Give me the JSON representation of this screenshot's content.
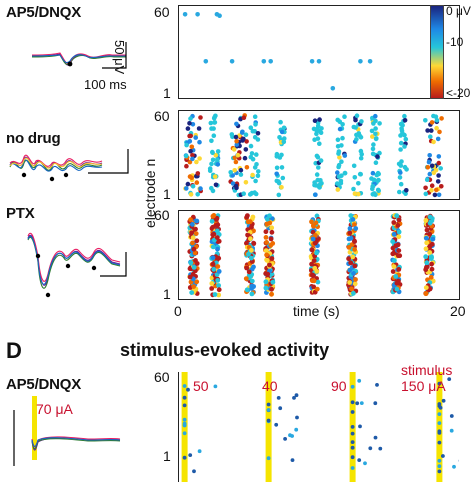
{
  "top": {
    "conditions": [
      {
        "label": "AP5/DNQX"
      },
      {
        "label": "no drug"
      },
      {
        "label": "PTX"
      }
    ],
    "scalebar": {
      "amplitude": "50 μV",
      "time": "100 ms"
    },
    "axis": {
      "y_top": "60",
      "y_bottom": "1",
      "ylabel": "electrode n",
      "xlabel": "time (s)",
      "x_ticks": [
        "0",
        "10",
        "20"
      ]
    },
    "colorbar": {
      "ticks": [
        "0 μV",
        "-10",
        "<-20"
      ],
      "colors": [
        "#1a237e",
        "#1e88e5",
        "#26c6da",
        "#fdd835",
        "#ef6c00",
        "#b71c1c"
      ]
    }
  },
  "section_d": {
    "letter": "D",
    "title": "stimulus-evoked activity",
    "condition": "AP5/DNQX",
    "stim_trace_label": "70 μA",
    "y_top": "60",
    "y_bottom": "1",
    "stimulus_label": "stimulus",
    "stimuli": [
      "50",
      "40",
      "90",
      "150 μA"
    ],
    "colors": {
      "stim": "#f5e400",
      "text": "#c8102e"
    }
  },
  "chart_data": [
    {
      "type": "scatter",
      "condition": "AP5/DNQX",
      "xlim": [
        0,
        20
      ],
      "ylim": [
        1,
        60
      ],
      "xlabel": "",
      "ylabel": "",
      "x": [
        0.3,
        1.2,
        2.6,
        2.8,
        1.8,
        3.7,
        6.0,
        6.5,
        9.5,
        10.0,
        13.0,
        13.7,
        11.0
      ],
      "y": [
        57,
        57,
        57,
        56,
        24,
        24,
        24,
        24,
        24,
        24,
        24,
        24,
        5
      ]
    },
    {
      "type": "scatter",
      "condition": "no drug",
      "xlim": [
        0,
        20
      ],
      "ylim": [
        1,
        60
      ],
      "xlabel": "time (s)",
      "ylabel": "electrode n",
      "bursts_s": [
        0.9,
        2.4,
        4.2,
        5.3,
        7.2,
        9.9,
        11.6,
        12.8,
        14.1,
        16.1,
        18.3
      ],
      "burst_strength": [
        0.9,
        0.5,
        1.0,
        0.35,
        0.4,
        0.55,
        0.45,
        0.4,
        0.7,
        0.4,
        0.85
      ]
    },
    {
      "type": "scatter",
      "condition": "PTX",
      "xlim": [
        0,
        20
      ],
      "ylim": [
        1,
        60
      ],
      "xlabel": "time (s)",
      "ylabel": "",
      "bursts_s": [
        0.9,
        2.5,
        5.0,
        6.4,
        9.7,
        12.4,
        15.6,
        18.0
      ]
    },
    {
      "type": "scatter",
      "condition": "AP5/DNQX stimulus-evoked",
      "stimulus_times_norm": [
        0.02,
        0.32,
        0.62,
        0.93
      ],
      "stimulus_labels": [
        "50",
        "40",
        "90",
        "150 μA"
      ]
    }
  ]
}
